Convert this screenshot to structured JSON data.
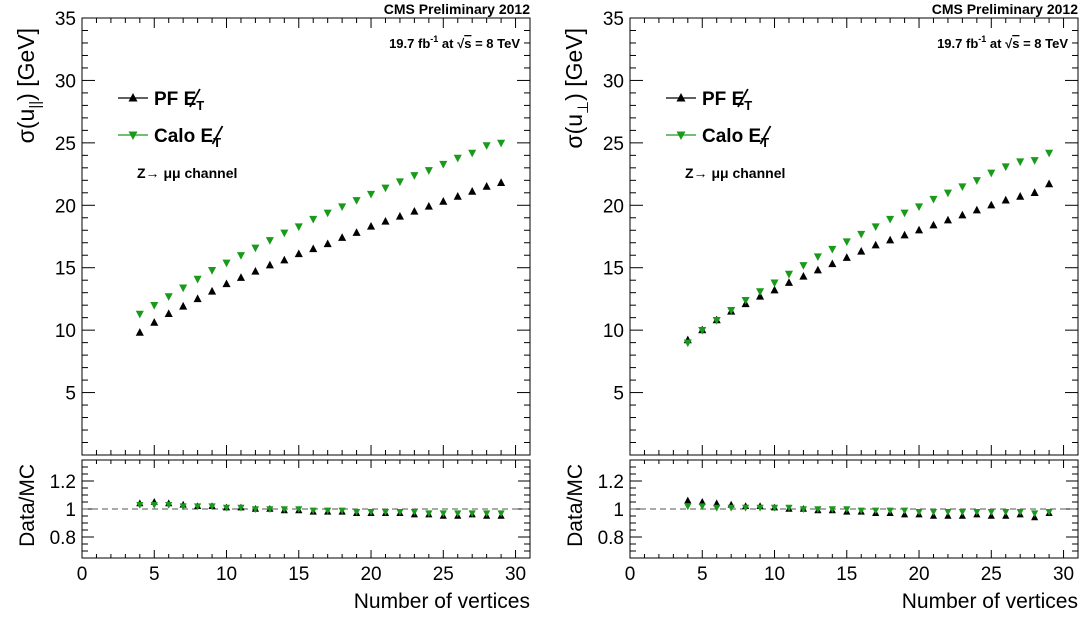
{
  "header": "CMS Preliminary 2012",
  "lumi": {
    "pre": "19.7 fb",
    "sup": "-1",
    "mid": " at ",
    "sqrt": "s",
    "post": " = 8 TeV"
  },
  "channel": "Z→ μμ channel",
  "legend": {
    "pf": {
      "name": "PF",
      "met": "E",
      "sub": "T"
    },
    "calo": {
      "name": "Calo",
      "met": "E",
      "sub": "T"
    }
  },
  "xlabel": "Number of vertices",
  "ratio_ylabel": "Data/MC",
  "colors": {
    "pf": "#000000",
    "calo": "#1a9a1a",
    "ref": "#555555"
  },
  "chart_data": [
    {
      "type": "scatter",
      "ylabel": {
        "sigma": "σ(u",
        "sub": "||",
        "close": ") [GeV]"
      },
      "xlim": [
        0,
        31
      ],
      "ylim": [
        0,
        35
      ],
      "xticks": [
        0,
        5,
        10,
        15,
        20,
        25,
        30
      ],
      "yticks": [
        5,
        10,
        15,
        20,
        25,
        30,
        35
      ],
      "x": [
        4,
        5,
        6,
        7,
        8,
        9,
        10,
        11,
        12,
        13,
        14,
        15,
        16,
        17,
        18,
        19,
        20,
        21,
        22,
        23,
        24,
        25,
        26,
        27,
        28,
        29
      ],
      "series": [
        {
          "name": "PF",
          "marker": "triangle-up",
          "values": [
            9.8,
            10.6,
            11.3,
            11.9,
            12.5,
            13.1,
            13.7,
            14.2,
            14.7,
            15.2,
            15.6,
            16.1,
            16.5,
            16.9,
            17.4,
            17.8,
            18.3,
            18.7,
            19.1,
            19.5,
            19.9,
            20.3,
            20.7,
            21.1,
            21.5,
            21.8
          ]
        },
        {
          "name": "Calo",
          "marker": "triangle-down",
          "values": [
            11.3,
            12.0,
            12.7,
            13.4,
            14.1,
            14.8,
            15.4,
            16.0,
            16.6,
            17.2,
            17.8,
            18.3,
            18.9,
            19.4,
            19.9,
            20.4,
            20.9,
            21.4,
            21.9,
            22.4,
            22.8,
            23.3,
            23.8,
            24.2,
            24.8,
            25.0
          ]
        }
      ],
      "ratio": {
        "ylim": [
          0.65,
          1.35
        ],
        "yticks": [
          0.8,
          1,
          1.2
        ],
        "series": [
          {
            "name": "PF",
            "values": [
              1.04,
              1.05,
              1.04,
              1.03,
              1.02,
              1.02,
              1.01,
              1.01,
              1.0,
              1.0,
              0.99,
              0.99,
              0.98,
              0.98,
              0.98,
              0.97,
              0.97,
              0.97,
              0.97,
              0.96,
              0.96,
              0.95,
              0.95,
              0.96,
              0.95,
              0.95
            ]
          },
          {
            "name": "Calo",
            "values": [
              1.03,
              1.03,
              1.03,
              1.02,
              1.02,
              1.02,
              1.01,
              1.01,
              1.0,
              1.0,
              1.0,
              1.0,
              0.99,
              0.99,
              0.99,
              0.98,
              0.98,
              0.98,
              0.98,
              0.98,
              0.97,
              0.97,
              0.97,
              0.97,
              0.97,
              0.97
            ]
          }
        ]
      }
    },
    {
      "type": "scatter",
      "ylabel": {
        "sigma": "σ(u",
        "sub": "⊥",
        "close": ") [GeV]"
      },
      "xlim": [
        0,
        31
      ],
      "ylim": [
        0,
        35
      ],
      "xticks": [
        0,
        5,
        10,
        15,
        20,
        25,
        30
      ],
      "yticks": [
        5,
        10,
        15,
        20,
        25,
        30,
        35
      ],
      "x": [
        4,
        5,
        6,
        7,
        8,
        9,
        10,
        11,
        12,
        13,
        14,
        15,
        16,
        17,
        18,
        19,
        20,
        21,
        22,
        23,
        24,
        25,
        26,
        27,
        28,
        29
      ],
      "series": [
        {
          "name": "PF",
          "marker": "triangle-up",
          "values": [
            9.2,
            10.0,
            10.8,
            11.5,
            12.1,
            12.7,
            13.2,
            13.8,
            14.3,
            14.8,
            15.3,
            15.8,
            16.3,
            16.8,
            17.2,
            17.6,
            18.0,
            18.4,
            18.8,
            19.2,
            19.6,
            20.0,
            20.4,
            20.7,
            21.0,
            21.7
          ]
        },
        {
          "name": "Calo",
          "marker": "triangle-down",
          "values": [
            9.0,
            10.0,
            10.8,
            11.6,
            12.4,
            13.1,
            13.8,
            14.5,
            15.2,
            15.9,
            16.5,
            17.1,
            17.7,
            18.3,
            18.9,
            19.4,
            19.9,
            20.5,
            21.0,
            21.5,
            22.0,
            22.6,
            23.1,
            23.5,
            23.6,
            24.2
          ]
        }
      ],
      "ratio": {
        "ylim": [
          0.65,
          1.35
        ],
        "yticks": [
          0.8,
          1,
          1.2
        ],
        "series": [
          {
            "name": "PF",
            "values": [
              1.06,
              1.05,
              1.04,
              1.03,
              1.02,
              1.02,
              1.01,
              1.0,
              1.0,
              0.99,
              0.99,
              0.98,
              0.98,
              0.97,
              0.97,
              0.96,
              0.96,
              0.95,
              0.95,
              0.95,
              0.96,
              0.95,
              0.95,
              0.96,
              0.94,
              0.97
            ]
          },
          {
            "name": "Calo",
            "values": [
              1.02,
              1.02,
              1.01,
              1.01,
              1.01,
              1.01,
              1.01,
              1.01,
              1.0,
              1.0,
              1.0,
              1.0,
              0.99,
              0.99,
              0.99,
              0.99,
              0.98,
              0.98,
              0.98,
              0.98,
              0.98,
              0.98,
              0.98,
              0.98,
              0.97,
              0.98
            ]
          }
        ]
      }
    }
  ]
}
